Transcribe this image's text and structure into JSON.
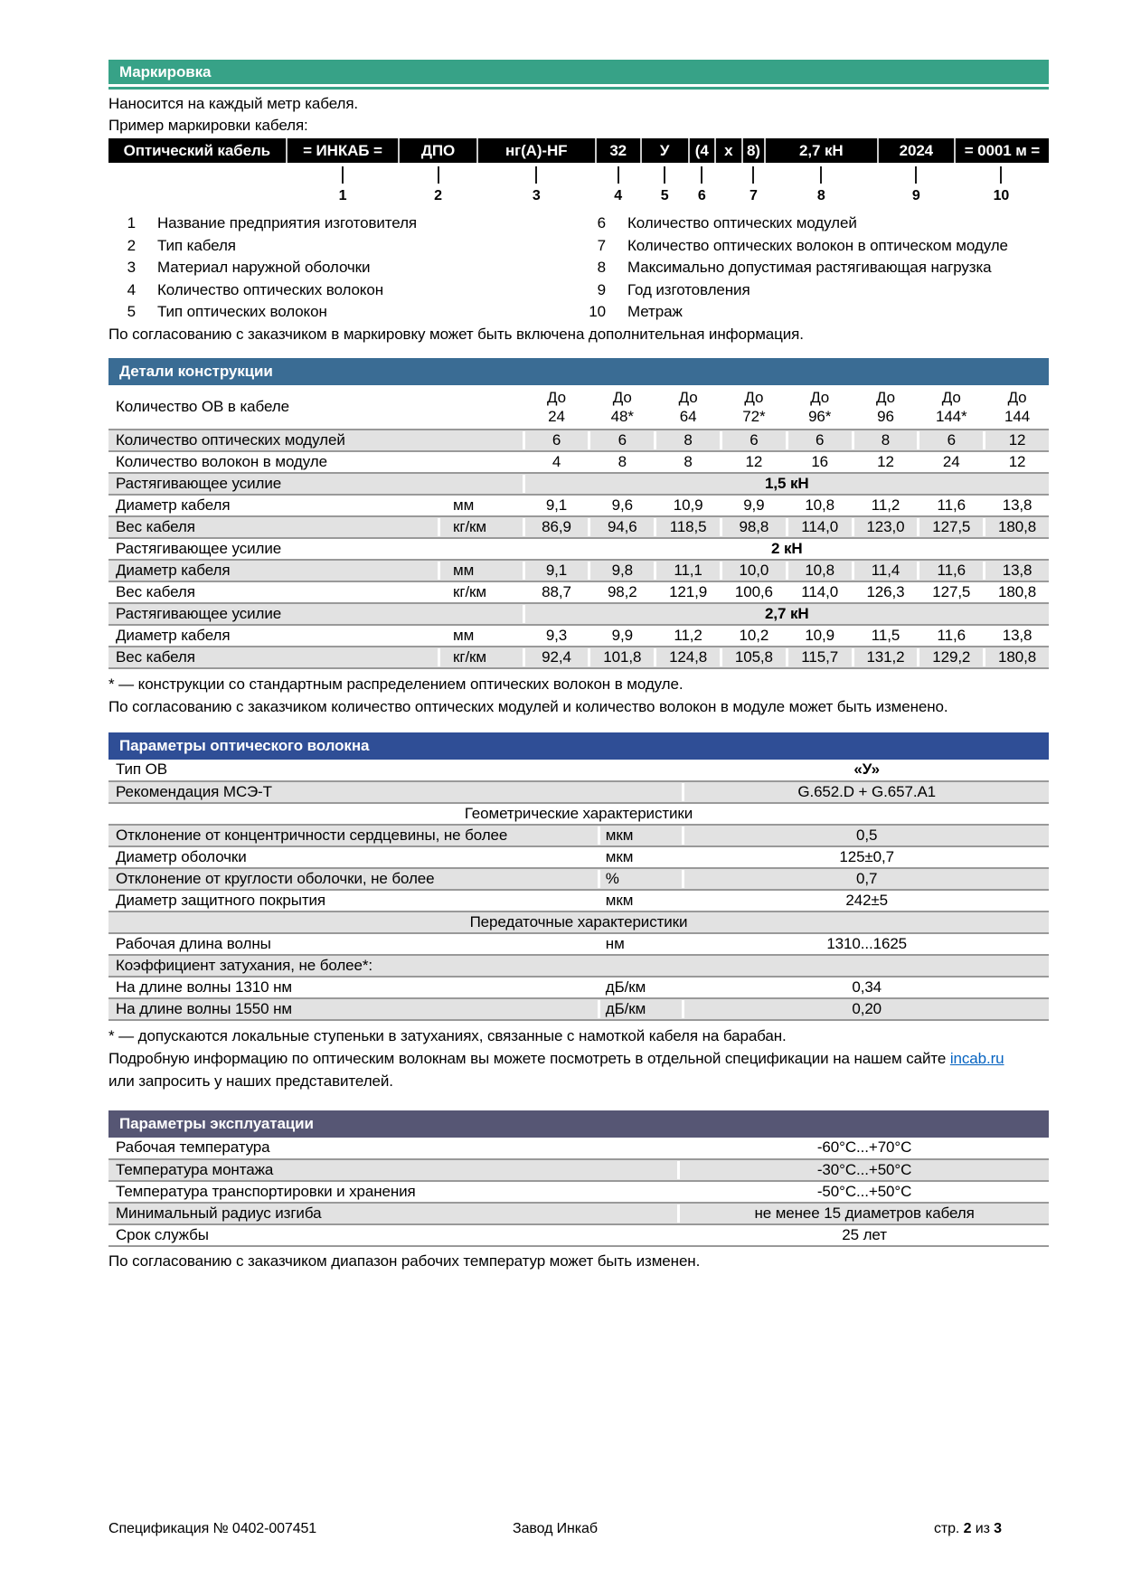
{
  "marking": {
    "title": "Маркировка",
    "line1": "Наносится на каждый метр кабеля.",
    "line2": "Пример маркировки кабеля:",
    "segments": [
      {
        "label": "Оптический кабель",
        "num": ""
      },
      {
        "label": "= ИНКАБ =",
        "num": "1"
      },
      {
        "label": "ДПО",
        "num": "2"
      },
      {
        "label": "нг(А)-HF",
        "num": "3"
      },
      {
        "label": "32",
        "num": "4"
      },
      {
        "label": "У",
        "num": "5"
      },
      {
        "label": "(4",
        "num": "6"
      },
      {
        "label": "x",
        "num": ""
      },
      {
        "label": "8)",
        "num": "7"
      },
      {
        "label": "2,7 кН",
        "num": "8"
      },
      {
        "label": "2024",
        "num": "9"
      },
      {
        "label": "= 0001 м =",
        "num": "10"
      }
    ],
    "legend_left": [
      {
        "num": "1",
        "text": "Название предприятия изготовителя"
      },
      {
        "num": "2",
        "text": "Тип кабеля"
      },
      {
        "num": "3",
        "text": "Материал наружной оболочки"
      },
      {
        "num": "4",
        "text": "Количество оптических волокон"
      },
      {
        "num": "5",
        "text": "Тип оптических волокон"
      }
    ],
    "legend_right": [
      {
        "num": "6",
        "text": "Количество оптических модулей"
      },
      {
        "num": "7",
        "text": "Количество оптических волокон в оптическом модуле"
      },
      {
        "num": "8",
        "text": "Максимально допустимая растягивающая нагрузка"
      },
      {
        "num": "9",
        "text": "Год изготовления"
      },
      {
        "num": "10",
        "text": "Метраж"
      }
    ],
    "note": "По согласованию с заказчиком в маркировку может быть включена дополнительная информация."
  },
  "construction": {
    "title": "Детали конструкции",
    "header_label": "Количество ОВ в кабеле",
    "header_cols": [
      [
        "До",
        "24"
      ],
      [
        "До",
        "48*"
      ],
      [
        "До",
        "64"
      ],
      [
        "До",
        "72*"
      ],
      [
        "До",
        "96*"
      ],
      [
        "До",
        "96"
      ],
      [
        "До",
        "144*"
      ],
      [
        "До",
        "144"
      ]
    ],
    "rows": [
      {
        "type": "data",
        "label": "Количество оптических модулей",
        "unit": "",
        "values": [
          "6",
          "6",
          "8",
          "6",
          "6",
          "8",
          "6",
          "12"
        ]
      },
      {
        "type": "data",
        "label": "Количество волокон в модуле",
        "unit": "",
        "values": [
          "4",
          "8",
          "8",
          "12",
          "16",
          "12",
          "24",
          "12"
        ]
      },
      {
        "type": "span",
        "label": "Растягивающее усилие",
        "value": "1,5 кН"
      },
      {
        "type": "data",
        "label": "Диаметр кабеля",
        "unit": "мм",
        "values": [
          "9,1",
          "9,6",
          "10,9",
          "9,9",
          "10,8",
          "11,2",
          "11,6",
          "13,8"
        ]
      },
      {
        "type": "data",
        "label": "Вес кабеля",
        "unit": "кг/км",
        "values": [
          "86,9",
          "94,6",
          "118,5",
          "98,8",
          "114,0",
          "123,0",
          "127,5",
          "180,8"
        ]
      },
      {
        "type": "span",
        "label": "Растягивающее усилие",
        "value": "2 кН"
      },
      {
        "type": "data",
        "label": "Диаметр кабеля",
        "unit": "мм",
        "values": [
          "9,1",
          "9,8",
          "11,1",
          "10,0",
          "10,8",
          "11,4",
          "11,6",
          "13,8"
        ]
      },
      {
        "type": "data",
        "label": "Вес кабеля",
        "unit": "кг/км",
        "values": [
          "88,7",
          "98,2",
          "121,9",
          "100,6",
          "114,0",
          "126,3",
          "127,5",
          "180,8"
        ]
      },
      {
        "type": "span",
        "label": "Растягивающее усилие",
        "value": "2,7 кН"
      },
      {
        "type": "data",
        "label": "Диаметр кабеля",
        "unit": "мм",
        "values": [
          "9,3",
          "9,9",
          "11,2",
          "10,2",
          "10,9",
          "11,5",
          "11,6",
          "13,8"
        ]
      },
      {
        "type": "data",
        "label": "Вес кабеля",
        "unit": "кг/км",
        "values": [
          "92,4",
          "101,8",
          "124,8",
          "105,8",
          "115,7",
          "131,2",
          "129,2",
          "180,8"
        ]
      }
    ],
    "footnote1": "* — конструкции со стандартным распределением оптических волокон в модуле.",
    "footnote2": "По согласованию с заказчиком количество оптических модулей и количество волокон в модуле может быть изменено."
  },
  "fiber": {
    "title": "Параметры оптического волокна",
    "rows": [
      {
        "type": "lv",
        "label": "Тип ОВ",
        "unit": "",
        "value": "«У»",
        "bold": true
      },
      {
        "type": "lv",
        "label": "Рекомендация МСЭ-Т",
        "unit": "",
        "value": "G.652.D + G.657.A1"
      },
      {
        "type": "section",
        "label": "Геометрические характеристики"
      },
      {
        "type": "lv",
        "label": "Отклонение от концентричности сердцевины, не более",
        "unit": "мкм",
        "value": "0,5"
      },
      {
        "type": "lv",
        "label": "Диаметр оболочки",
        "unit": "мкм",
        "value": "125±0,7"
      },
      {
        "type": "lv",
        "label": "Отклонение от круглости оболочки, не более",
        "unit": "%",
        "value": "0,7"
      },
      {
        "type": "lv",
        "label": "Диаметр защитного покрытия",
        "unit": "мкм",
        "value": "242±5"
      },
      {
        "type": "section",
        "label": "Передаточные характеристики"
      },
      {
        "type": "lv",
        "label": "Рабочая длина волны",
        "unit": "нм",
        "value": "1310...1625"
      },
      {
        "type": "labelonly",
        "label": "Коэффициент затухания, не более*:"
      },
      {
        "type": "lv",
        "label": "На длине волны 1310 нм",
        "unit": "дБ/км",
        "value": "0,34"
      },
      {
        "type": "lv",
        "label": "На длине волны 1550 нм",
        "unit": "дБ/км",
        "value": "0,20"
      }
    ],
    "footnote1": "* — допускаются локальные ступеньки в затуханиях, связанные с намоткой кабеля на барабан.",
    "footnote2_pre": "Подробную информацию по оптическим волокнам вы можете посмотреть в отдельной спецификации на нашем сайте ",
    "footnote2_link": "incab.ru",
    "footnote2_post": "или запросить у наших представителей."
  },
  "operation": {
    "title": "Параметры эксплуатации",
    "rows": [
      {
        "label": "Рабочая температура",
        "value": "-60°С...+70°С"
      },
      {
        "label": "Температура монтажа",
        "value": "-30°С...+50°С"
      },
      {
        "label": "Температура транспортировки и хранения",
        "value": "-50°С...+50°С"
      },
      {
        "label": "Минимальный радиус изгиба",
        "value": "не менее 15 диаметров кабеля"
      },
      {
        "label": "Срок службы",
        "value": "25 лет"
      }
    ],
    "note": "По согласованию с заказчиком диапазон рабочих температур может быть изменен."
  },
  "footer": {
    "left": "Спецификация № 0402-007451",
    "center": "Завод Инкаб",
    "right_pre": "стр. ",
    "right_page": "2",
    "right_mid": " из ",
    "right_total": "3"
  }
}
